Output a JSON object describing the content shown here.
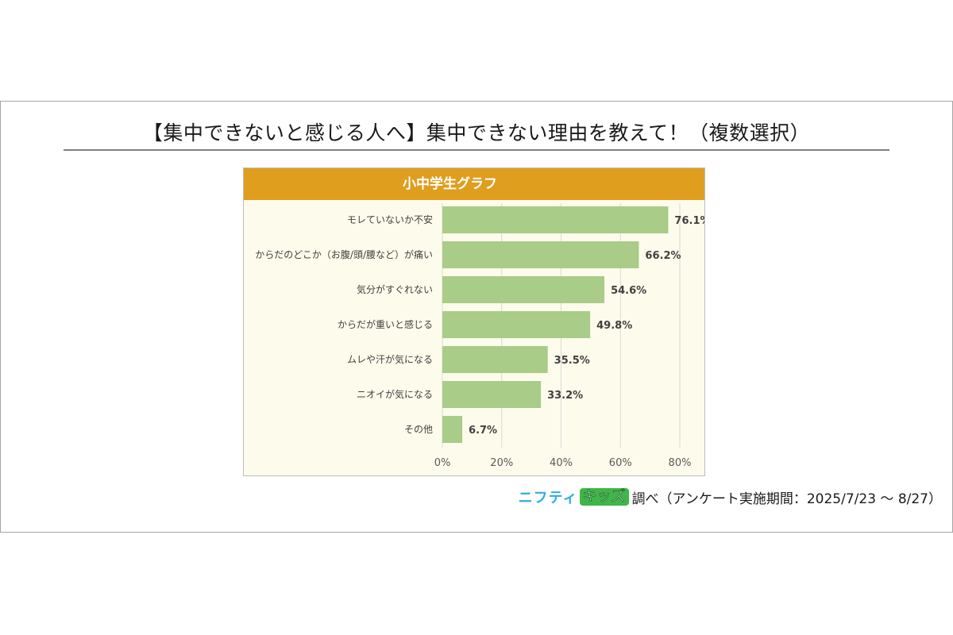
{
  "page_title": "【集中できないと感じる人へ】集中できない理由を教えて！（複数選択）",
  "chart_header": "小中学生グラフ",
  "footer": {
    "logo_part1": "ニフティ",
    "logo_part2": "キッズ",
    "source_text": "調べ（アンケート実施期間：2025/7/23 ～ 8/27）"
  },
  "colors": {
    "bar": "#a9cc88",
    "header": "#e09e1e",
    "plot_bg": "#fdfbeb",
    "grid": "#d9d9d9"
  },
  "chart_data": {
    "type": "bar",
    "orientation": "horizontal",
    "title": "小中学生グラフ",
    "categories": [
      "モレていないか不安",
      "からだのどこか（お腹/頭/腰など）が痛い",
      "気分がすぐれない",
      "からだが重いと感じる",
      "ムレや汗が気になる",
      "ニオイが気になる",
      "その他"
    ],
    "values": [
      76.1,
      66.2,
      54.6,
      49.8,
      35.5,
      33.2,
      6.7
    ],
    "value_labels": [
      "76.1%",
      "66.2%",
      "54.6%",
      "49.8%",
      "35.5%",
      "33.2%",
      "6.7%"
    ],
    "xlim": [
      0,
      80
    ],
    "x_ticks": [
      0,
      20,
      40,
      60,
      80
    ],
    "x_tick_labels": [
      "0%",
      "20%",
      "40%",
      "60%",
      "80%"
    ],
    "grid": true,
    "legend": "none"
  }
}
